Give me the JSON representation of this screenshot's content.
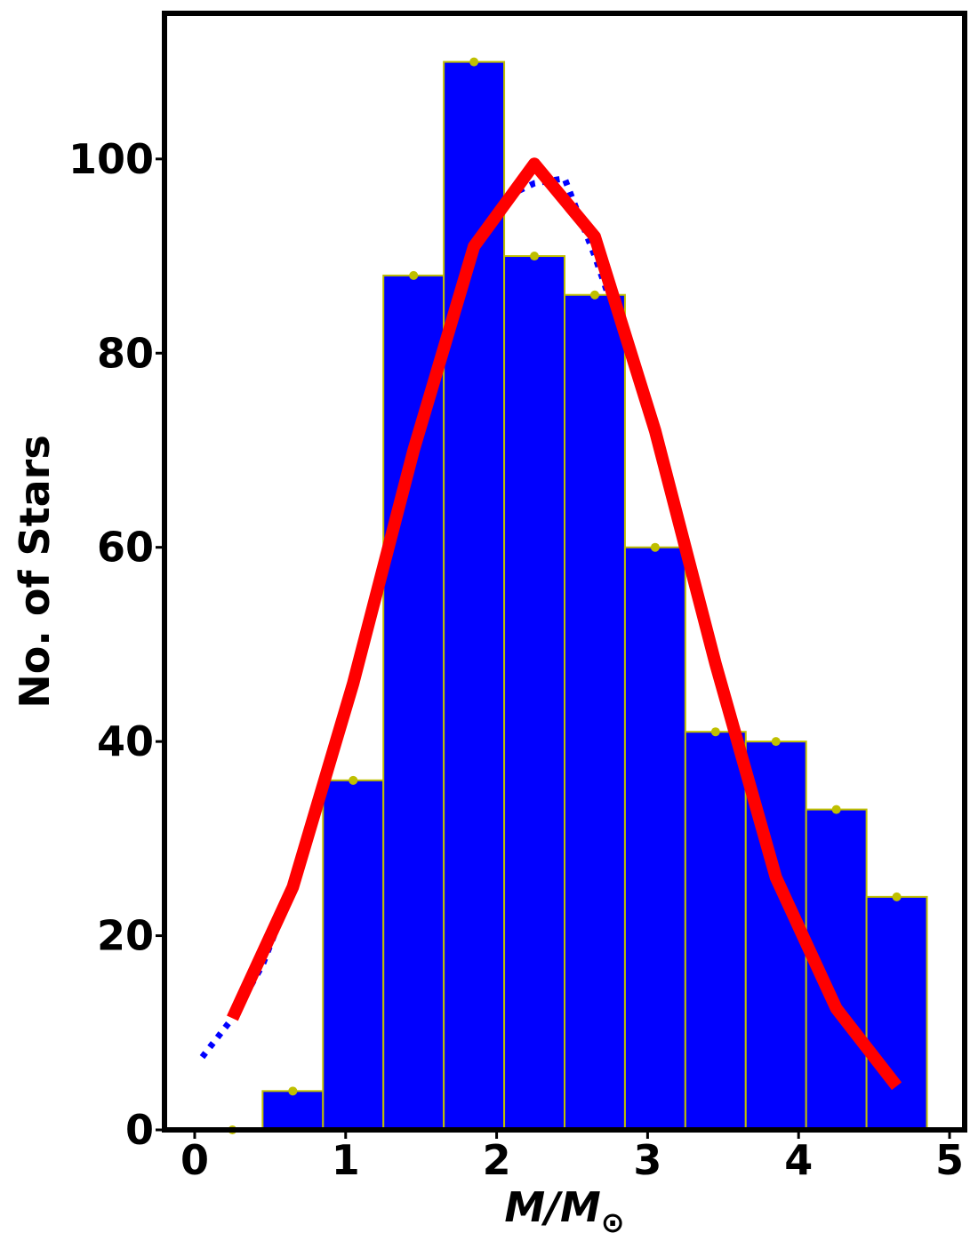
{
  "chart_data": {
    "type": "bar",
    "xlabel": "M/M",
    "xlabel_symbol": "⊙",
    "ylabel": "No. of Stars",
    "xlim": [
      -0.2,
      5.1
    ],
    "ylim": [
      0,
      115
    ],
    "x_ticks": [
      0,
      1,
      2,
      3,
      4,
      5
    ],
    "x_tick_labels": [
      "0",
      "1",
      "2",
      "3",
      "4",
      "5"
    ],
    "y_ticks": [
      0,
      20,
      40,
      60,
      80,
      100
    ],
    "y_tick_labels": [
      "0",
      "20",
      "40",
      "60",
      "80",
      "100"
    ],
    "bar_width": 0.4,
    "bin_centers": [
      0.25,
      0.65,
      1.05,
      1.45,
      1.85,
      2.25,
      2.65,
      3.05,
      3.45,
      3.85,
      4.25,
      4.65
    ],
    "counts": [
      0,
      4,
      36,
      88,
      110,
      90,
      86,
      60,
      41,
      40,
      33,
      24
    ],
    "bar_color": "#0000ff",
    "bar_edge_color": "#bfbf00",
    "marker_color": "#bfbf00",
    "fit_curve": {
      "color": "#ff0000",
      "x": [
        0.25,
        0.65,
        1.05,
        1.45,
        1.85,
        2.25,
        2.65,
        3.05,
        3.45,
        3.85,
        4.25,
        4.65
      ],
      "y": [
        11.5,
        25,
        46,
        70,
        91,
        99.5,
        92,
        72,
        48,
        26,
        12.5,
        4.5
      ]
    },
    "dotted_curve": {
      "color": "#0000ff",
      "x": [
        0.05,
        0.25,
        0.45,
        0.65,
        1.05,
        1.45,
        1.85,
        2.05,
        2.25,
        2.45,
        2.65,
        3.05,
        3.45,
        3.85,
        4.25,
        4.65
      ],
      "y": [
        7.5,
        11.5,
        17,
        25,
        46,
        70,
        91,
        96,
        97.5,
        98,
        90,
        72,
        48,
        26,
        12.5,
        4.5
      ]
    },
    "grid": false,
    "legend": "none"
  }
}
